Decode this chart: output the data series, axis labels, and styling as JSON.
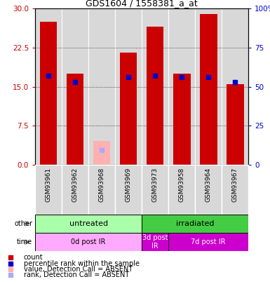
{
  "title": "GDS1604 / 1558381_a_at",
  "samples": [
    "GSM93961",
    "GSM93962",
    "GSM93968",
    "GSM93969",
    "GSM93973",
    "GSM93958",
    "GSM93964",
    "GSM93967"
  ],
  "count_values": [
    27.5,
    17.5,
    null,
    21.5,
    26.5,
    17.5,
    29.0,
    15.5
  ],
  "percentile_values": [
    57.0,
    53.0,
    null,
    56.0,
    57.0,
    56.0,
    56.0,
    53.0
  ],
  "absent_value": [
    null,
    null,
    4.5,
    null,
    null,
    null,
    null,
    null
  ],
  "absent_rank": [
    null,
    null,
    9.5,
    null,
    null,
    null,
    null,
    null
  ],
  "ylim_left": [
    0,
    30
  ],
  "ylim_right": [
    0,
    100
  ],
  "yticks_left": [
    0,
    7.5,
    15,
    22.5,
    30
  ],
  "yticks_right": [
    0,
    25,
    50,
    75,
    100
  ],
  "group_other": [
    {
      "label": "untreated",
      "start": 0,
      "end": 4,
      "color": "#aaffaa"
    },
    {
      "label": "irradiated",
      "start": 4,
      "end": 8,
      "color": "#44cc44"
    }
  ],
  "group_time": [
    {
      "label": "0d post IR",
      "start": 0,
      "end": 4,
      "color": "#ffaaff"
    },
    {
      "label": "3d post\nIR",
      "start": 4,
      "end": 5,
      "color": "#cc00cc"
    },
    {
      "label": "7d post IR",
      "start": 5,
      "end": 8,
      "color": "#cc00cc"
    }
  ],
  "bar_color": "#cc0000",
  "absent_bar_color": "#ffb0b0",
  "blue_dot_color": "#0000cc",
  "absent_rank_color": "#aaaaff",
  "bar_width": 0.65,
  "tick_color_left": "#cc0000",
  "tick_color_right": "#0000cc",
  "plot_bg": "#d8d8d8",
  "legend_items": [
    {
      "label": "count",
      "color": "#cc0000"
    },
    {
      "label": "percentile rank within the sample",
      "color": "#0000cc"
    },
    {
      "label": "value, Detection Call = ABSENT",
      "color": "#ffb0b0"
    },
    {
      "label": "rank, Detection Call = ABSENT",
      "color": "#aaaaff"
    }
  ]
}
